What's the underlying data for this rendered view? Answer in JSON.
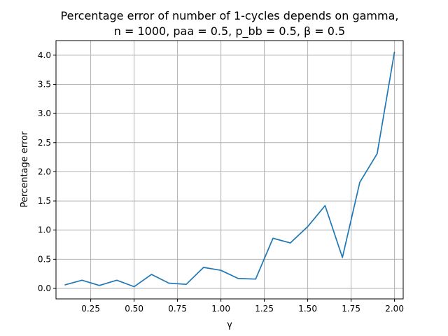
{
  "chart_data": {
    "type": "line",
    "title": "Percentage error of number of 1-cycles depends on gamma,",
    "subtitle": "n = 1000, paa = 0.5, p_bb = 0.5, β = 0.5",
    "xlabel": "γ",
    "ylabel": "Percentage error",
    "xlim": [
      0.05,
      2.05
    ],
    "ylim": [
      -0.18,
      4.25
    ],
    "grid": true,
    "x_ticks": [
      0.25,
      0.5,
      0.75,
      1.0,
      1.25,
      1.5,
      1.75,
      2.0
    ],
    "x_tick_labels": [
      "0.25",
      "0.50",
      "0.75",
      "1.00",
      "1.25",
      "1.50",
      "1.75",
      "2.00"
    ],
    "y_ticks": [
      0.0,
      0.5,
      1.0,
      1.5,
      2.0,
      2.5,
      3.0,
      3.5,
      4.0
    ],
    "y_tick_labels": [
      "0.0",
      "0.5",
      "1.0",
      "1.5",
      "2.0",
      "2.5",
      "3.0",
      "3.5",
      "4.0"
    ],
    "series": [
      {
        "color": "#1f77b4",
        "x": [
          0.1,
          0.2,
          0.3,
          0.4,
          0.5,
          0.6,
          0.7,
          0.8,
          0.9,
          1.0,
          1.1,
          1.2,
          1.3,
          1.4,
          1.5,
          1.6,
          1.7,
          1.8,
          1.9,
          2.0
        ],
        "y": [
          0.06,
          0.14,
          0.05,
          0.14,
          0.03,
          0.24,
          0.09,
          0.07,
          0.36,
          0.31,
          0.17,
          0.16,
          0.86,
          0.78,
          1.06,
          1.42,
          0.53,
          1.82,
          2.31,
          4.06
        ]
      }
    ]
  }
}
